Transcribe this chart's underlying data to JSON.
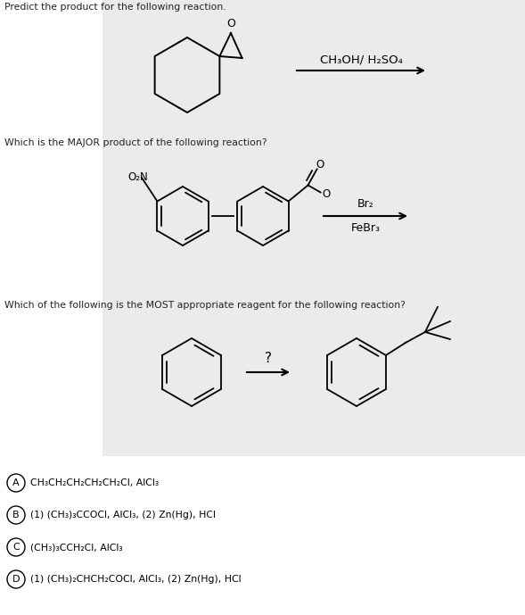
{
  "bg_color": "#ffffff",
  "panel_bg": "#ebebeb",
  "question1_text": "Predict the product for the following reaction.",
  "question2_text": "Which is the MAJOR product of the following reaction?",
  "question3_text": "Which of the following is the MOST appropriate reagent for the following reaction?",
  "reagent1": "CH₃OH/ H₂SO₄",
  "reagent2_line1": "Br₂",
  "reagent2_line2": "FeBr₃",
  "answer_A": "CH₃CH₂CH₂CH₂CH₂Cl, AlCl₃",
  "answer_B": "(1) (CH₃)₃CCOCl, AlCl₃, (2) Zn(Hg), HCl",
  "answer_C": "(CH₃)₃CCH₂Cl, AlCl₃",
  "answer_D": "(1) (CH₃)₂CHCH₂COCl, AlCl₃, (2) Zn(Hg), HCl",
  "text_color": "#333333"
}
